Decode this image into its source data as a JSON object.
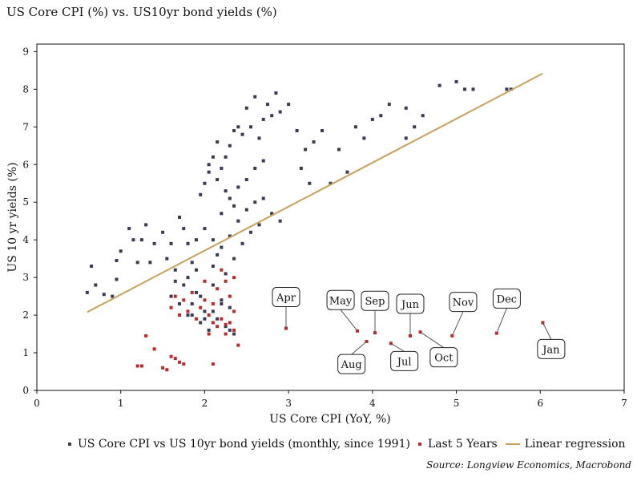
{
  "title": "US Core CPI (%) vs. US10yr bond yields (%)",
  "source": "Source: Longview Economics, Macrobond",
  "colors": {
    "monthly": "#3a3a55",
    "recent": "#c0282a",
    "regression": "#c8a25c"
  },
  "legend": {
    "monthly": "US Core CPI vs US 10yr bond yields (monthly, since 1991)",
    "recent": "Last 5 Years",
    "regression": "Linear regression"
  },
  "chart_data": {
    "type": "scatter",
    "xlabel": "US Core CPI (YoY, %)",
    "ylabel": "US 10 yr yields (%)",
    "xlim": [
      0,
      7
    ],
    "ylim": [
      0,
      9.2
    ],
    "xticks": [
      "0",
      "1",
      "2",
      "3",
      "4",
      "5",
      "6",
      "7"
    ],
    "yticks": [
      "0",
      "1",
      "2",
      "3",
      "4",
      "5",
      "6",
      "7",
      "8",
      "9"
    ],
    "grid": false,
    "legend_position": "bottom",
    "series": [
      {
        "name": "US Core CPI vs US 10yr bond yields (monthly, since 1991)",
        "points": [
          [
            0.6,
            2.6
          ],
          [
            0.65,
            3.3
          ],
          [
            0.7,
            2.8
          ],
          [
            0.8,
            2.55
          ],
          [
            0.9,
            2.5
          ],
          [
            0.95,
            2.95
          ],
          [
            1.0,
            3.7
          ],
          [
            0.95,
            3.45
          ],
          [
            1.1,
            4.3
          ],
          [
            1.15,
            4.0
          ],
          [
            1.2,
            3.4
          ],
          [
            1.25,
            4.0
          ],
          [
            1.3,
            4.4
          ],
          [
            1.35,
            3.4
          ],
          [
            1.4,
            3.9
          ],
          [
            1.5,
            4.2
          ],
          [
            1.55,
            3.5
          ],
          [
            1.6,
            3.9
          ],
          [
            1.65,
            3.2
          ],
          [
            1.7,
            4.6
          ],
          [
            1.75,
            4.3
          ],
          [
            1.8,
            3.9
          ],
          [
            1.85,
            3.4
          ],
          [
            1.9,
            4.0
          ],
          [
            1.95,
            5.2
          ],
          [
            2.0,
            5.5
          ],
          [
            2.05,
            5.8
          ],
          [
            2.1,
            6.2
          ],
          [
            2.15,
            6.6
          ],
          [
            2.2,
            5.9
          ],
          [
            2.25,
            6.2
          ],
          [
            2.3,
            6.5
          ],
          [
            2.35,
            6.9
          ],
          [
            2.4,
            7.0
          ],
          [
            2.45,
            6.8
          ],
          [
            2.5,
            7.5
          ],
          [
            2.55,
            7.0
          ],
          [
            2.6,
            7.8
          ],
          [
            2.65,
            6.7
          ],
          [
            2.7,
            7.2
          ],
          [
            2.75,
            7.6
          ],
          [
            2.8,
            7.3
          ],
          [
            2.85,
            7.9
          ],
          [
            2.9,
            7.4
          ],
          [
            3.0,
            7.6
          ],
          [
            3.1,
            6.9
          ],
          [
            3.15,
            5.9
          ],
          [
            3.2,
            6.4
          ],
          [
            3.25,
            5.5
          ],
          [
            3.3,
            6.6
          ],
          [
            3.4,
            6.9
          ],
          [
            3.5,
            5.5
          ],
          [
            3.6,
            6.4
          ],
          [
            3.7,
            5.8
          ],
          [
            3.8,
            7.0
          ],
          [
            3.9,
            6.7
          ],
          [
            4.0,
            7.2
          ],
          [
            4.1,
            7.3
          ],
          [
            4.2,
            7.6
          ],
          [
            4.4,
            7.5
          ],
          [
            4.5,
            7.0
          ],
          [
            4.6,
            7.3
          ],
          [
            4.8,
            8.1
          ],
          [
            5.0,
            8.2
          ],
          [
            5.1,
            8.0
          ],
          [
            5.2,
            8.0
          ],
          [
            5.6,
            8.0
          ],
          [
            5.65,
            8.0
          ],
          [
            4.4,
            6.7
          ],
          [
            1.8,
            2.0
          ],
          [
            1.85,
            2.3
          ],
          [
            1.9,
            2.6
          ],
          [
            1.95,
            1.8
          ],
          [
            2.0,
            2.1
          ],
          [
            2.05,
            1.6
          ],
          [
            2.1,
            2.8
          ],
          [
            2.15,
            1.9
          ],
          [
            2.2,
            2.4
          ],
          [
            2.25,
            1.7
          ],
          [
            2.3,
            2.2
          ],
          [
            2.35,
            1.5
          ],
          [
            1.7,
            2.3
          ],
          [
            1.75,
            2.8
          ],
          [
            1.6,
            2.5
          ],
          [
            1.65,
            2.9
          ],
          [
            2.1,
            3.3
          ],
          [
            2.2,
            3.8
          ],
          [
            2.3,
            4.1
          ],
          [
            2.4,
            4.5
          ],
          [
            2.5,
            4.8
          ],
          [
            2.6,
            5.0
          ],
          [
            2.7,
            5.1
          ],
          [
            2.8,
            4.7
          ],
          [
            2.9,
            4.5
          ],
          [
            2.0,
            4.3
          ],
          [
            2.1,
            4.0
          ],
          [
            2.2,
            4.7
          ],
          [
            2.3,
            5.1
          ],
          [
            2.4,
            5.4
          ],
          [
            2.5,
            5.6
          ],
          [
            2.6,
            5.9
          ],
          [
            2.7,
            6.1
          ],
          [
            2.15,
            3.6
          ],
          [
            2.25,
            3.1
          ],
          [
            2.35,
            3.5
          ],
          [
            2.45,
            3.9
          ],
          [
            2.55,
            4.2
          ],
          [
            2.65,
            4.4
          ],
          [
            2.05,
            6.0
          ],
          [
            2.15,
            5.6
          ],
          [
            2.25,
            5.3
          ],
          [
            2.35,
            4.9
          ],
          [
            1.9,
            3.2
          ],
          [
            1.8,
            3.0
          ],
          [
            1.85,
            2.0
          ],
          [
            1.95,
            2.5
          ],
          [
            2.0,
            1.9
          ],
          [
            2.1,
            2.1
          ],
          [
            2.2,
            2.3
          ],
          [
            2.3,
            1.6
          ]
        ]
      },
      {
        "name": "Last 5 Years",
        "points": [
          [
            1.2,
            0.65
          ],
          [
            1.25,
            0.65
          ],
          [
            1.3,
            1.45
          ],
          [
            1.4,
            1.1
          ],
          [
            1.5,
            0.6
          ],
          [
            1.55,
            0.55
          ],
          [
            1.6,
            0.9
          ],
          [
            1.65,
            0.85
          ],
          [
            1.7,
            0.75
          ],
          [
            1.75,
            0.7
          ],
          [
            2.1,
            0.7
          ],
          [
            1.6,
            2.2
          ],
          [
            1.65,
            2.5
          ],
          [
            1.7,
            2.0
          ],
          [
            1.75,
            2.4
          ],
          [
            1.8,
            2.1
          ],
          [
            1.85,
            2.6
          ],
          [
            1.9,
            1.9
          ],
          [
            1.95,
            2.2
          ],
          [
            2.0,
            2.4
          ],
          [
            2.05,
            2.0
          ],
          [
            2.1,
            2.3
          ],
          [
            2.15,
            2.7
          ],
          [
            2.2,
            3.2
          ],
          [
            2.25,
            2.9
          ],
          [
            2.3,
            2.5
          ],
          [
            2.35,
            2.1
          ],
          [
            2.1,
            1.8
          ],
          [
            2.15,
            1.7
          ],
          [
            2.2,
            1.9
          ],
          [
            2.25,
            1.5
          ],
          [
            2.3,
            1.8
          ],
          [
            2.35,
            1.6
          ],
          [
            2.4,
            1.2
          ],
          [
            2.35,
            3.0
          ],
          [
            2.25,
            1.75
          ],
          [
            2.0,
            2.9
          ],
          [
            2.05,
            1.5
          ],
          [
            2.97,
            1.65
          ],
          [
            3.82,
            1.58
          ],
          [
            3.93,
            1.3
          ],
          [
            4.03,
            1.53
          ],
          [
            4.22,
            1.25
          ],
          [
            4.45,
            1.45
          ],
          [
            4.57,
            1.55
          ],
          [
            4.95,
            1.45
          ],
          [
            5.48,
            1.52
          ],
          [
            6.03,
            1.8
          ]
        ]
      },
      {
        "name": "Linear regression",
        "line": [
          [
            0.6,
            2.08
          ],
          [
            6.03,
            8.42
          ]
        ]
      }
    ],
    "annotations": [
      {
        "text": "Apr",
        "x": 2.97,
        "y": 1.65,
        "bx": 2.97,
        "by": 2.48
      },
      {
        "text": "May",
        "x": 3.82,
        "y": 1.58,
        "bx": 3.62,
        "by": 2.4
      },
      {
        "text": "Aug",
        "x": 3.93,
        "y": 1.3,
        "bx": 3.75,
        "by": 0.7
      },
      {
        "text": "Sep",
        "x": 4.03,
        "y": 1.53,
        "bx": 4.03,
        "by": 2.38
      },
      {
        "text": "Jul",
        "x": 4.22,
        "y": 1.25,
        "bx": 4.38,
        "by": 0.78
      },
      {
        "text": "Jun",
        "x": 4.45,
        "y": 1.45,
        "bx": 4.45,
        "by": 2.3
      },
      {
        "text": "Oct",
        "x": 4.57,
        "y": 1.55,
        "bx": 4.85,
        "by": 0.88
      },
      {
        "text": "Nov",
        "x": 4.95,
        "y": 1.45,
        "bx": 5.08,
        "by": 2.35
      },
      {
        "text": "Dec",
        "x": 5.48,
        "y": 1.52,
        "bx": 5.6,
        "by": 2.44
      },
      {
        "text": "Jan",
        "x": 6.03,
        "y": 1.8,
        "bx": 6.13,
        "by": 1.1
      }
    ]
  }
}
